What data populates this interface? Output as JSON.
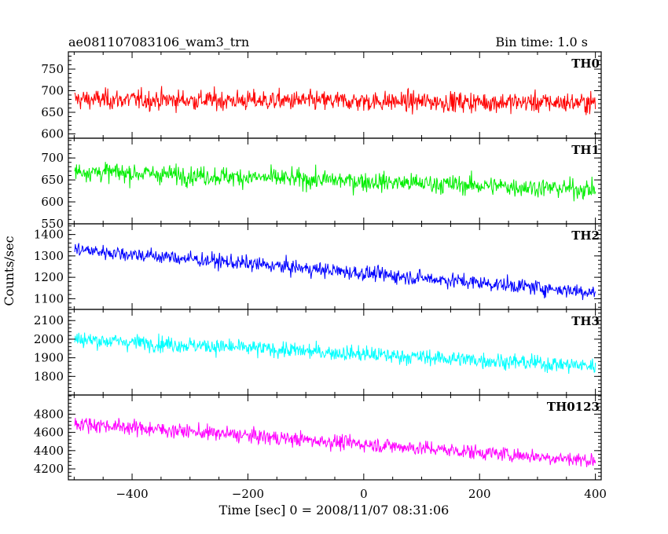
{
  "header": {
    "left_title": "ae081107083106_wam3_trn",
    "right_title": "Bin time: 1.0 s"
  },
  "chart_data": {
    "type": "line",
    "title": "ae081107083106_wam3_trn",
    "subtitle": "Bin time: 1.0 s",
    "xlabel": "Time [sec] 0 = 2008/11/07 08:31:06",
    "ylabel": "Counts/sec",
    "xlim": [
      -510,
      410
    ],
    "xticks": [
      "−400",
      "−200",
      "0",
      "200",
      "400"
    ],
    "x_tick_values": [
      -400,
      -200,
      0,
      200,
      400
    ],
    "x_start": -499,
    "x_end": 400,
    "x_step": 1,
    "grid": false,
    "panels": [
      {
        "name": "TH0",
        "color": "#ff0000",
        "ylim": [
          590,
          790
        ],
        "yticks": [
          600,
          650,
          700,
          750
        ],
        "trend": [
          [
            -500,
            680
          ],
          [
            400,
            672
          ]
        ],
        "noise_amplitude": 30
      },
      {
        "name": "TH1",
        "color": "#00ee00",
        "ylim": [
          550,
          745
        ],
        "yticks": [
          550,
          600,
          650,
          700
        ],
        "trend": [
          [
            -500,
            670
          ],
          [
            400,
            628
          ]
        ],
        "noise_amplitude": 28
      },
      {
        "name": "TH2",
        "color": "#0000ff",
        "ylim": [
          1050,
          1450
        ],
        "yticks": [
          1100,
          1200,
          1300,
          1400
        ],
        "trend": [
          [
            -500,
            1330
          ],
          [
            400,
            1130
          ]
        ],
        "noise_amplitude": 45
      },
      {
        "name": "TH3",
        "color": "#00ffff",
        "ylim": [
          1700,
          2160
        ],
        "yticks": [
          1800,
          1900,
          2000,
          2100
        ],
        "trend": [
          [
            -500,
            2000
          ],
          [
            400,
            1855
          ]
        ],
        "noise_amplitude": 55
      },
      {
        "name": "TH0123",
        "color": "#ff00ff",
        "ylim": [
          4080,
          5010
        ],
        "yticks": [
          4200,
          4400,
          4600,
          4800
        ],
        "trend": [
          [
            -500,
            4700
          ],
          [
            400,
            4290
          ]
        ],
        "noise_amplitude": 105
      }
    ]
  }
}
